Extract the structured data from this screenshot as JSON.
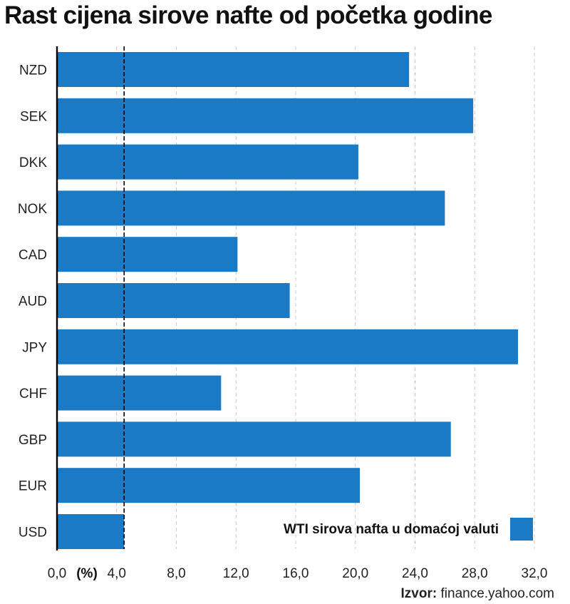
{
  "title": "Rast cijena sirove nafte od početka godine",
  "source": {
    "label": "Izvor:",
    "value": "finance.yahoo.com"
  },
  "colors": {
    "bar": "#1a7ac6",
    "grid": "#cccccc",
    "axis": "#000000"
  },
  "chart_data": {
    "type": "bar",
    "orientation": "horizontal",
    "title": "Rast cijena sirove nafte od početka godine",
    "unit_label": "(%)",
    "categories": [
      "NZD",
      "SEK",
      "DKK",
      "NOK",
      "CAD",
      "AUD",
      "JPY",
      "CHF",
      "GBP",
      "EUR",
      "USD"
    ],
    "series": [
      {
        "name": "WTI sirova nafta u domaćoj valuti",
        "values": [
          23.6,
          27.9,
          20.2,
          26.0,
          12.1,
          15.6,
          30.9,
          11.0,
          26.4,
          20.3,
          4.5
        ]
      }
    ],
    "xlim": [
      0,
      32
    ],
    "xticks": [
      "0,0",
      "4,0",
      "8,0",
      "12,0",
      "16,0",
      "20,0",
      "24,0",
      "28,0",
      "32,0"
    ],
    "reference_line": {
      "value": 4.5,
      "style": "dashed"
    },
    "grid": "vertical dashed",
    "legend_position": "bottom-right"
  }
}
